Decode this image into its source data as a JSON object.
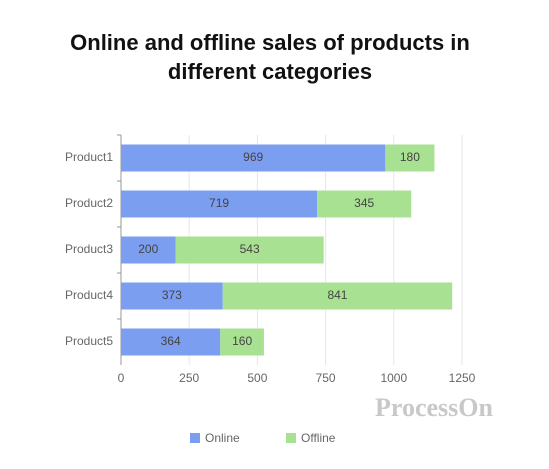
{
  "chart_data": {
    "type": "stacked-barh",
    "title": "Online and offline sales of products in different categories",
    "categories": [
      "Product1",
      "Product2",
      "Product3",
      "Product4",
      "Product5"
    ],
    "series": [
      {
        "name": "Online",
        "color": "#7b9ef0",
        "values": [
          969,
          719,
          200,
          373,
          364
        ]
      },
      {
        "name": "Offline",
        "color": "#a9e192",
        "values": [
          180,
          345,
          543,
          841,
          160
        ]
      }
    ],
    "xlim": [
      0,
      1250
    ],
    "xticks": [
      0,
      250,
      500,
      750,
      1000,
      1250
    ],
    "grid": true,
    "legend": "bottom",
    "watermark": "ProcessOn"
  }
}
